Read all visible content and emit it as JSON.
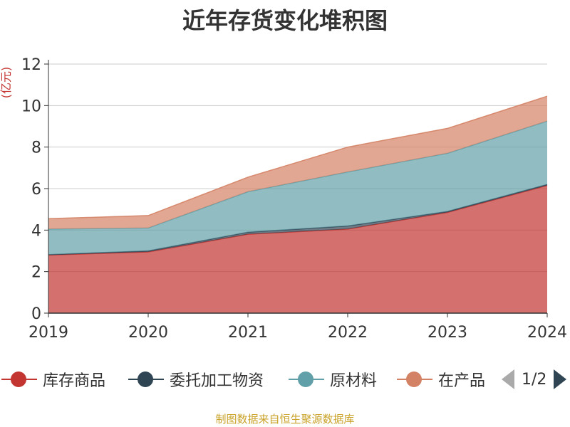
{
  "chart_data": {
    "type": "area",
    "stacked": true,
    "title": "近年存货变化堆积图",
    "y_unit": "(亿元)",
    "categories": [
      "2019",
      "2020",
      "2021",
      "2022",
      "2023",
      "2024"
    ],
    "series": [
      {
        "name": "库存商品",
        "color": "#c23531",
        "values": [
          2.8,
          2.95,
          3.8,
          4.05,
          4.85,
          6.15
        ]
      },
      {
        "name": "委托加工物资",
        "color": "#2f4554",
        "values": [
          0.02,
          0.05,
          0.1,
          0.15,
          0.05,
          0.05
        ]
      },
      {
        "name": "原材料",
        "color": "#61a0a8",
        "values": [
          1.23,
          1.1,
          1.95,
          2.6,
          2.8,
          3.05
        ]
      },
      {
        "name": "在产品",
        "color": "#d48265",
        "values": [
          0.5,
          0.6,
          0.7,
          1.2,
          1.2,
          1.2
        ]
      }
    ],
    "ylim": [
      0,
      12
    ],
    "yticks": [
      0,
      2,
      4,
      6,
      8,
      10,
      12
    ],
    "grid": true,
    "legend_position": "bottom"
  },
  "legend": {
    "items": [
      "库存商品",
      "委托加工物资",
      "原材料",
      "在产品"
    ],
    "pager_text": "1/2"
  },
  "source_note": "制图数据来自恒生聚源数据库"
}
